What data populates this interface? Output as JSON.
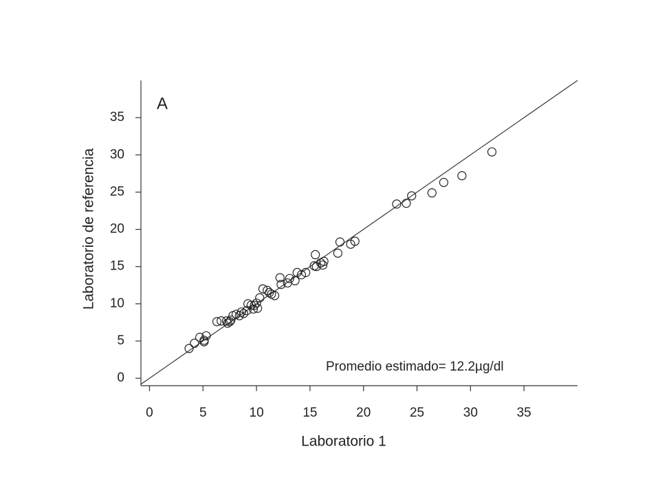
{
  "chart_data": {
    "type": "scatter",
    "annotation": "A",
    "note": "Promedio estimado= 12.2µg/dl",
    "x_label": "Laboratorio 1",
    "y_label": "Laboratorio de referencia",
    "color": "#222222",
    "x": [
      3.7,
      4.2,
      4.7,
      5.3,
      5.1,
      5.1,
      6.3,
      6.7,
      7.2,
      7.5,
      7.3,
      7.6,
      7.8,
      8.1,
      8.4,
      8.6,
      8.8,
      9.1,
      9.2,
      9.5,
      9.7,
      9.8,
      10.0,
      10.1,
      10.3,
      10.6,
      11.0,
      11.2,
      11.4,
      11.7,
      12.2,
      12.3,
      12.9,
      13.1,
      13.6,
      13.8,
      14.2,
      14.6,
      15.4,
      15.5,
      15.6,
      16.0,
      16.3,
      16.2,
      17.6,
      17.8,
      18.8,
      19.2,
      23.1,
      24.0,
      24.5,
      26.4,
      27.5,
      29.2,
      32.0
    ],
    "values": [
      4.0,
      4.7,
      5.5,
      5.7,
      5.1,
      4.9,
      7.6,
      7.7,
      7.7,
      7.6,
      7.4,
      7.8,
      8.4,
      8.6,
      8.4,
      8.9,
      8.7,
      9.1,
      10.0,
      9.8,
      9.3,
      9.8,
      10.1,
      9.4,
      10.8,
      12.0,
      11.8,
      11.5,
      11.3,
      11.1,
      13.5,
      12.6,
      12.8,
      13.4,
      13.1,
      14.2,
      13.9,
      14.2,
      15.1,
      16.6,
      15.0,
      15.5,
      15.7,
      15.2,
      16.8,
      18.3,
      18.0,
      18.4,
      23.4,
      23.5,
      24.5,
      24.9,
      26.3,
      27.2,
      30.4
    ],
    "identity_line": {
      "x": [
        -0.8,
        40
      ],
      "y": [
        -0.8,
        40
      ]
    },
    "xlim": [
      -0.8,
      40
    ],
    "ylim": [
      -1,
      40
    ],
    "xticks": [
      0,
      5,
      10,
      15,
      20,
      25,
      30,
      35
    ],
    "yticks": [
      0,
      5,
      10,
      15,
      20,
      25,
      30,
      35
    ]
  }
}
